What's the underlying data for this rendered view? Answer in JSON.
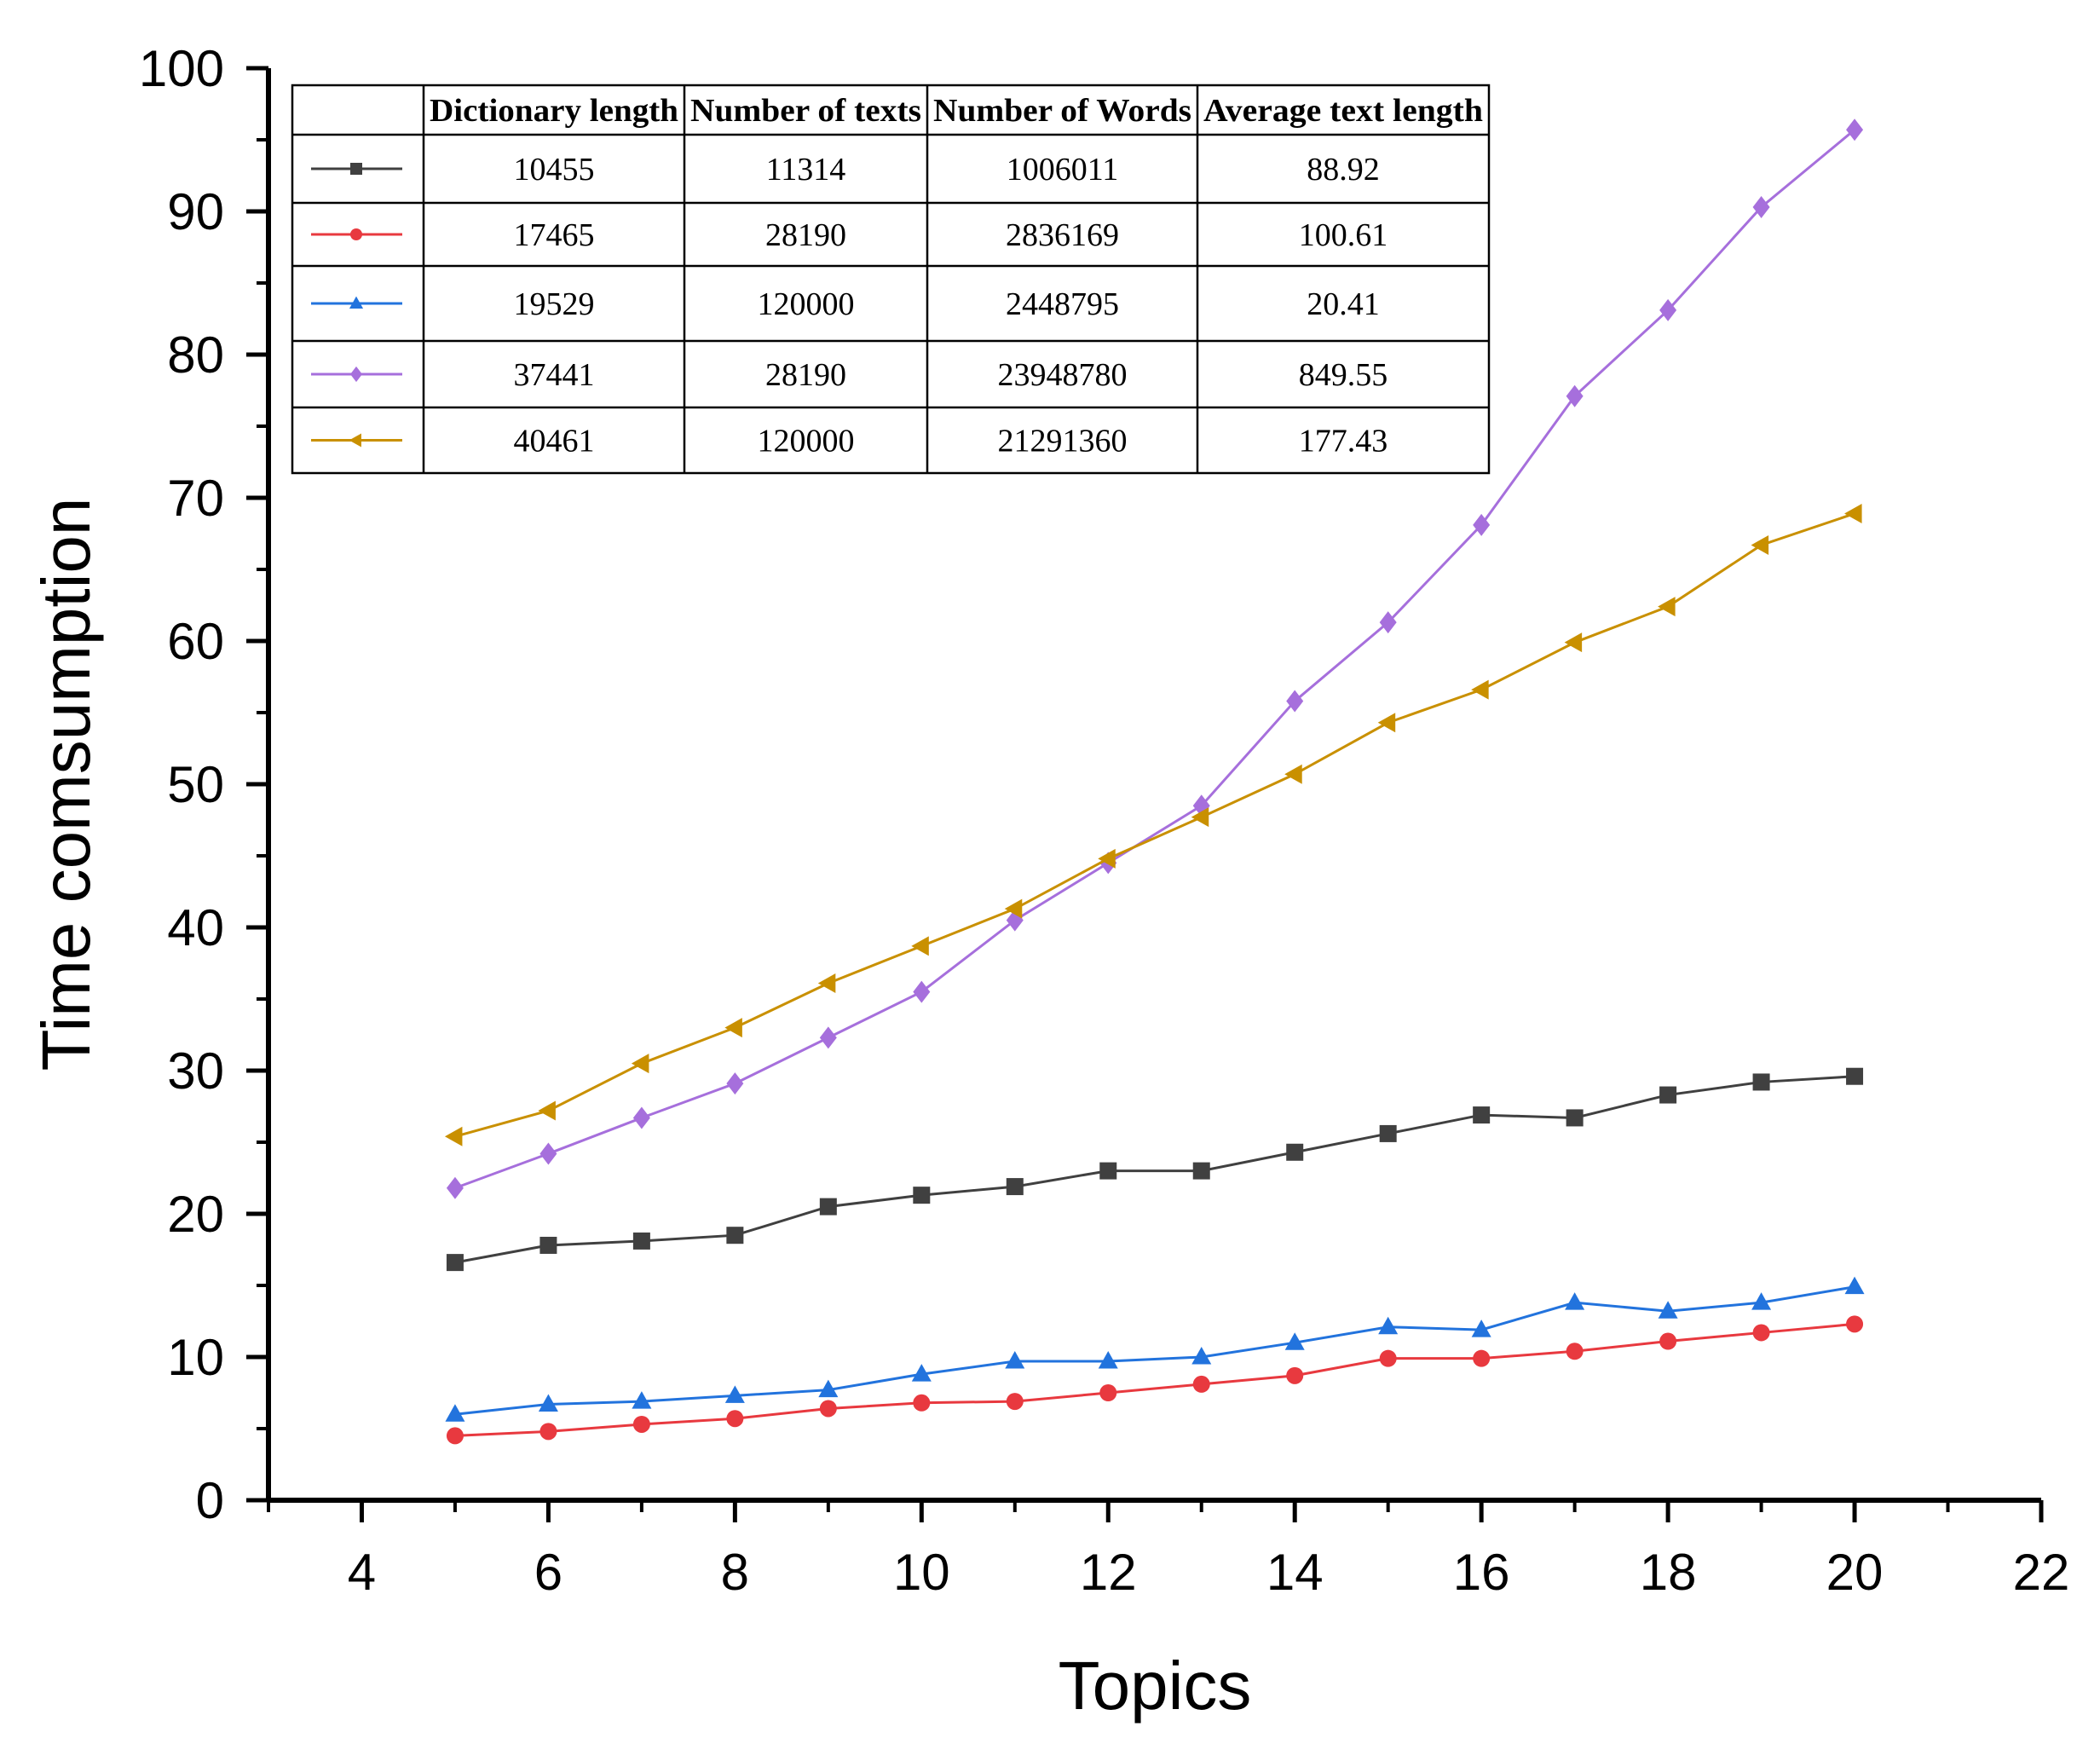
{
  "chart_data": {
    "type": "line",
    "title": "",
    "xlabel": "Topics",
    "ylabel": "Time comsumption",
    "xlim": [
      3,
      22
    ],
    "ylim": [
      0,
      100
    ],
    "xticks": [
      4,
      6,
      8,
      10,
      12,
      14,
      16,
      18,
      20,
      22
    ],
    "yticks": [
      0,
      10,
      20,
      30,
      40,
      50,
      60,
      70,
      80,
      90,
      100
    ],
    "grid": false,
    "legend_position": "top-left",
    "x": [
      5,
      6,
      7,
      8,
      9,
      10,
      11,
      12,
      13,
      14,
      15,
      16,
      17,
      18,
      19,
      20
    ],
    "series": [
      {
        "name": "10455",
        "color": "#404040",
        "marker": "square",
        "values": [
          16.6,
          17.8,
          18.1,
          18.5,
          20.5,
          21.3,
          21.9,
          23.0,
          23.0,
          24.3,
          25.6,
          26.9,
          26.7,
          28.3,
          29.2,
          29.6
        ]
      },
      {
        "name": "17465",
        "color": "#e8393f",
        "marker": "circle",
        "values": [
          4.5,
          4.8,
          5.3,
          5.7,
          6.4,
          6.8,
          6.9,
          7.5,
          8.1,
          8.7,
          9.9,
          9.9,
          10.4,
          11.1,
          11.7,
          12.3
        ]
      },
      {
        "name": "19529",
        "color": "#2273dd",
        "marker": "triangle-up",
        "values": [
          6.0,
          6.7,
          6.9,
          7.3,
          7.7,
          8.8,
          9.7,
          9.7,
          10.0,
          11.0,
          12.1,
          11.9,
          13.8,
          13.2,
          13.8,
          14.9
        ]
      },
      {
        "name": "37441",
        "color": "#a66fdc",
        "marker": "diamond",
        "values": [
          21.8,
          24.2,
          26.7,
          29.1,
          32.3,
          35.5,
          40.5,
          44.5,
          48.5,
          55.8,
          61.3,
          68.1,
          77.1,
          83.1,
          90.3,
          95.7
        ]
      },
      {
        "name": "40461",
        "color": "#c99000",
        "marker": "triangle-left",
        "values": [
          25.4,
          27.2,
          30.5,
          33.0,
          36.1,
          38.7,
          41.3,
          44.8,
          47.7,
          50.7,
          54.3,
          56.6,
          59.9,
          62.4,
          66.7,
          68.9
        ]
      }
    ],
    "table": {
      "headers": [
        "Dictionary length",
        "Number of texts",
        "Number of Words",
        "Average text length"
      ],
      "rows": [
        [
          "10455",
          "11314",
          "1006011",
          "88.92"
        ],
        [
          "17465",
          "28190",
          "2836169",
          "100.61"
        ],
        [
          "19529",
          "120000",
          "2448795",
          "20.41"
        ],
        [
          "37441",
          "28190",
          "23948780",
          "849.55"
        ],
        [
          "40461",
          "120000",
          "21291360",
          "177.43"
        ]
      ]
    }
  }
}
